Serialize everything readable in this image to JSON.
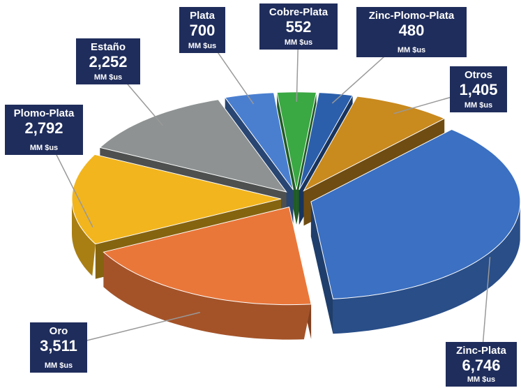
{
  "chart_data": {
    "type": "pie",
    "categories": [
      "Plata",
      "Cobre-Plata",
      "Zinc-Plomo-Plata",
      "Otros",
      "Zinc-Plata",
      "Oro",
      "Plomo-Plata",
      "Estaño"
    ],
    "values": [
      700,
      552,
      480,
      1405,
      6746,
      3511,
      2792,
      2252
    ],
    "value_labels": [
      "700",
      "552",
      "480",
      "1,405",
      "6,746",
      "3,511",
      "2,792",
      "2,252"
    ],
    "unit": "MM $us",
    "colors": [
      "#4a7fd0",
      "#3aa843",
      "#2b5fab",
      "#c98a1e",
      "#3b70c2",
      "#ea773a",
      "#f2b51d",
      "#8e9292"
    ]
  }
}
